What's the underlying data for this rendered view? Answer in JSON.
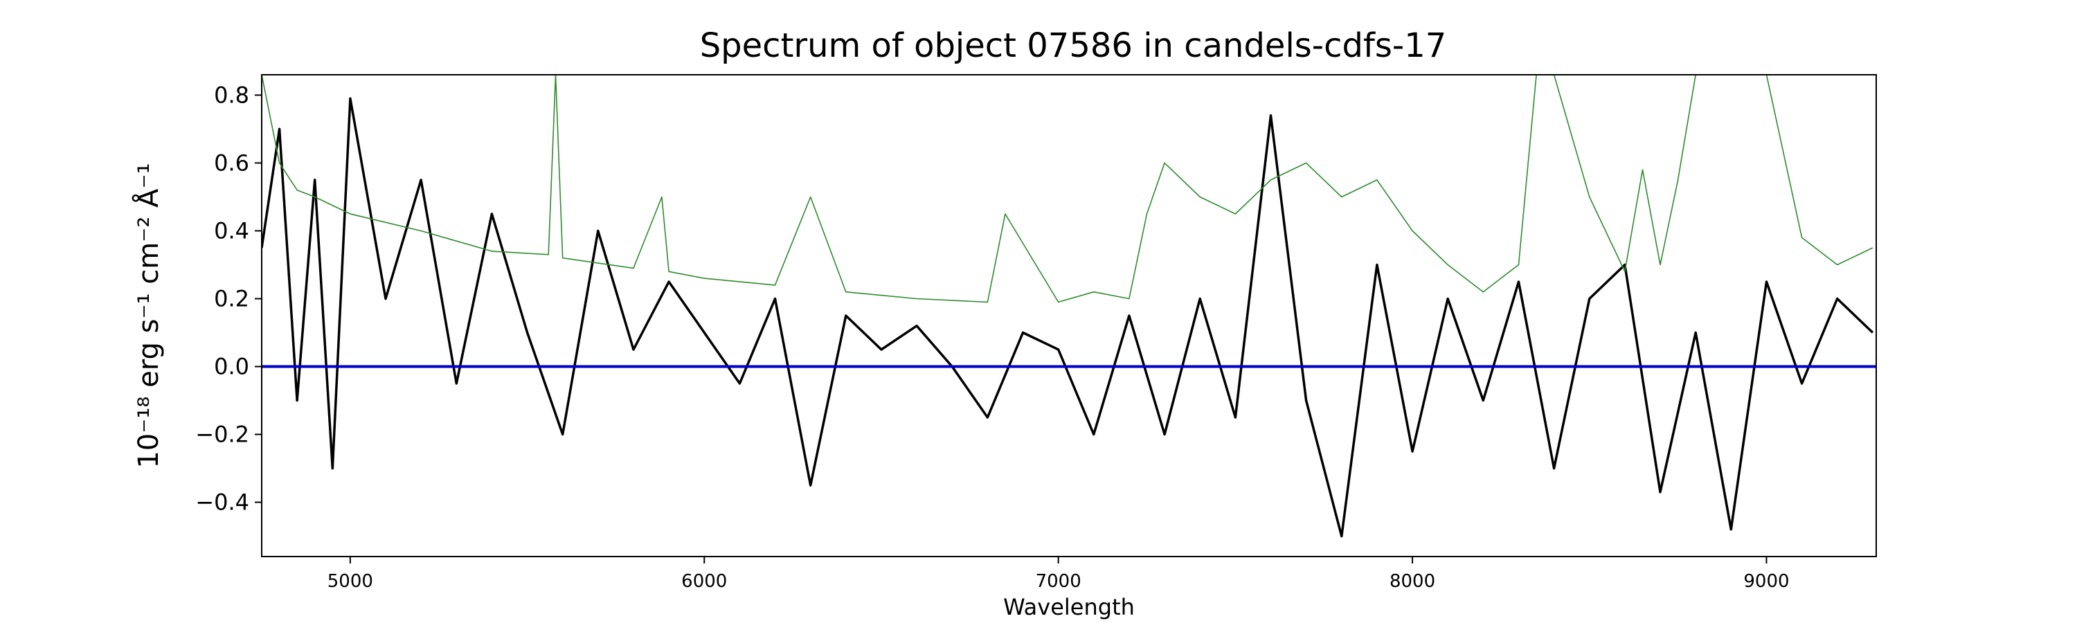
{
  "chart_data": {
    "type": "line",
    "title": "Spectrum of object 07586 in candels-cdfs-17",
    "xlabel": "Wavelength",
    "ylabel": "10⁻¹⁸ erg s⁻¹ cm⁻² Å⁻¹",
    "xlim": [
      4750,
      9310
    ],
    "ylim": [
      -0.56,
      0.86
    ],
    "xticks": [
      5000,
      6000,
      7000,
      8000,
      9000
    ],
    "yticks": [
      -0.4,
      -0.2,
      0.0,
      0.2,
      0.4,
      0.6,
      0.8
    ],
    "ytick_labels": [
      "−0.4",
      "−0.2",
      "0.0",
      "0.2",
      "0.4",
      "0.6",
      "0.8"
    ],
    "grid": false,
    "series": [
      {
        "role": "flux",
        "color": "#000000",
        "x": [
          4750,
          4800,
          4850,
          4900,
          4950,
          5000,
          5100,
          5200,
          5300,
          5400,
          5500,
          5600,
          5700,
          5800,
          5900,
          6000,
          6100,
          6200,
          6300,
          6400,
          6500,
          6600,
          6700,
          6800,
          6900,
          7000,
          7100,
          7200,
          7300,
          7400,
          7500,
          7600,
          7700,
          7800,
          7900,
          8000,
          8100,
          8200,
          8300,
          8400,
          8500,
          8600,
          8700,
          8800,
          8900,
          9000,
          9100,
          9200,
          9300
        ],
        "y": [
          0.35,
          0.7,
          -0.1,
          0.55,
          -0.3,
          0.79,
          0.2,
          0.55,
          -0.05,
          0.45,
          0.1,
          -0.2,
          0.4,
          0.05,
          0.25,
          0.1,
          -0.05,
          0.2,
          -0.35,
          0.15,
          0.05,
          0.12,
          0.0,
          -0.15,
          0.1,
          0.05,
          -0.2,
          0.15,
          -0.2,
          0.2,
          -0.15,
          0.74,
          -0.1,
          -0.5,
          0.3,
          -0.25,
          0.2,
          -0.1,
          0.25,
          -0.3,
          0.2,
          0.3,
          -0.37,
          0.1,
          -0.48,
          0.25,
          -0.05,
          0.2,
          0.1
        ]
      },
      {
        "role": "noise",
        "color": "#2e8b2e",
        "x": [
          4750,
          4800,
          4850,
          4900,
          5000,
          5200,
          5400,
          5560,
          5580,
          5600,
          5800,
          5880,
          5900,
          6000,
          6200,
          6300,
          6400,
          6600,
          6800,
          6850,
          7000,
          7100,
          7200,
          7250,
          7300,
          7400,
          7500,
          7600,
          7700,
          7800,
          7900,
          8000,
          8100,
          8200,
          8300,
          8350,
          8400,
          8500,
          8600,
          8650,
          8700,
          8750,
          8800,
          8850,
          8900,
          9000,
          9100,
          9200,
          9300
        ],
        "y": [
          0.86,
          0.6,
          0.52,
          0.5,
          0.45,
          0.4,
          0.34,
          0.33,
          0.86,
          0.32,
          0.29,
          0.5,
          0.28,
          0.26,
          0.24,
          0.5,
          0.22,
          0.2,
          0.19,
          0.45,
          0.19,
          0.22,
          0.2,
          0.45,
          0.6,
          0.5,
          0.45,
          0.55,
          0.6,
          0.5,
          0.55,
          0.4,
          0.3,
          0.22,
          0.3,
          0.86,
          0.86,
          0.5,
          0.28,
          0.58,
          0.3,
          0.55,
          0.86,
          0.86,
          0.86,
          0.86,
          0.38,
          0.3,
          0.35
        ]
      },
      {
        "role": "zero",
        "color": "#0000cc",
        "x": [
          4750,
          9310
        ],
        "y": [
          0.0,
          0.0
        ]
      }
    ]
  }
}
